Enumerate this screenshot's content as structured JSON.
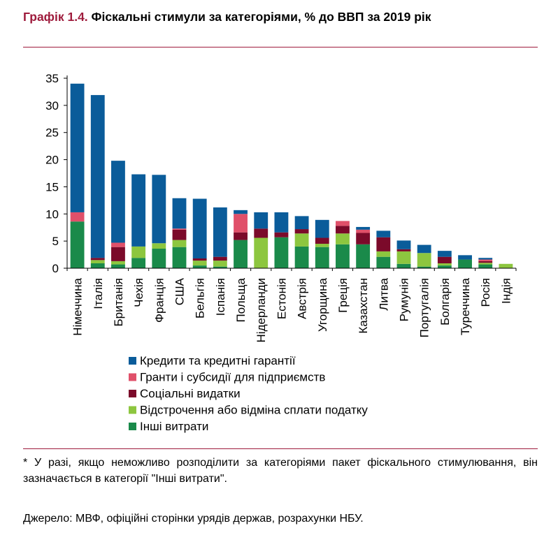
{
  "header": {
    "label": "Графік 1.4.",
    "title": "Фіскальні стимули за категоріями, % до ВВП за 2019 рік"
  },
  "chart_data": {
    "type": "bar",
    "stacked": true,
    "title": "Фіскальні стимули за категоріями, % до ВВП за 2019 рік",
    "xlabel": "",
    "ylabel": "",
    "ylim": [
      0,
      35
    ],
    "yticks": [
      0,
      5,
      10,
      15,
      20,
      25,
      30,
      35
    ],
    "grid": false,
    "legend_position": "bottom",
    "categories": [
      "Німеччина",
      "Італія",
      "Британія",
      "Чехія",
      "Франція",
      "США",
      "Бельгія",
      "Іспанія",
      "Польща",
      "Нідерланди",
      "Естонія",
      "Австрія",
      "Угорщина",
      "Греція",
      "Казахстан",
      "Литва",
      "Румунія",
      "Португалія",
      "Болгарія",
      "Туреччина",
      "Росія",
      "Індія"
    ],
    "series": [
      {
        "name": "Інші витрати",
        "color": "#1a8a4a",
        "values": [
          8.6,
          0.9,
          0.7,
          1.9,
          3.6,
          3.9,
          0.5,
          0.3,
          5.2,
          0.0,
          5.7,
          4.0,
          3.9,
          4.4,
          4.4,
          2.1,
          0.8,
          0.3,
          0.5,
          1.6,
          0.7,
          0.0
        ]
      },
      {
        "name": "Відстрочення або відміна сплати податку",
        "color": "#8dc63f",
        "values": [
          0.0,
          0.6,
          0.6,
          2.1,
          1.0,
          1.3,
          0.9,
          1.1,
          0.0,
          5.6,
          0.0,
          2.4,
          0.6,
          2.0,
          0.0,
          1.0,
          2.3,
          2.5,
          0.4,
          0.0,
          0.3,
          0.8
        ]
      },
      {
        "name": "Соціальні видатки",
        "color": "#7b0a2a",
        "values": [
          0.0,
          0.4,
          2.6,
          0.0,
          0.0,
          1.9,
          0.4,
          0.7,
          1.4,
          1.7,
          0.9,
          0.8,
          1.1,
          1.4,
          2.1,
          2.6,
          0.4,
          0.0,
          1.2,
          0.0,
          0.3,
          0.0
        ]
      },
      {
        "name": "Гранти і субсидії для підприємств",
        "color": "#e0506a",
        "values": [
          1.7,
          0.0,
          0.8,
          0.0,
          0.0,
          0.2,
          0.0,
          0.0,
          3.4,
          0.0,
          0.0,
          0.0,
          0.0,
          0.9,
          0.6,
          0.0,
          0.0,
          0.0,
          0.0,
          0.0,
          0.3,
          0.0
        ]
      },
      {
        "name": "Кредити та кредитні гарантії",
        "color": "#0a5c9a",
        "values": [
          23.7,
          30.0,
          15.1,
          13.3,
          12.6,
          5.6,
          11.0,
          9.1,
          0.7,
          3.0,
          3.7,
          2.4,
          3.3,
          0.0,
          0.5,
          1.2,
          1.6,
          1.5,
          1.1,
          0.8,
          0.3,
          0.0
        ]
      }
    ],
    "legend_order": [
      "Кредити та кредитні гарантії",
      "Гранти і субсидії для підприємств",
      "Соціальні видатки",
      "Відстрочення або відміна сплати податку",
      "Інші витрати"
    ]
  },
  "footer": {
    "note": "* У разі, якщо неможливо розподілити за категоріями пакет фіскального стимулювання, він зазначається в категорії \"Інші витрати\".",
    "source": "Джерело: МВФ, офіційні сторінки урядів держав, розрахунки НБУ."
  }
}
